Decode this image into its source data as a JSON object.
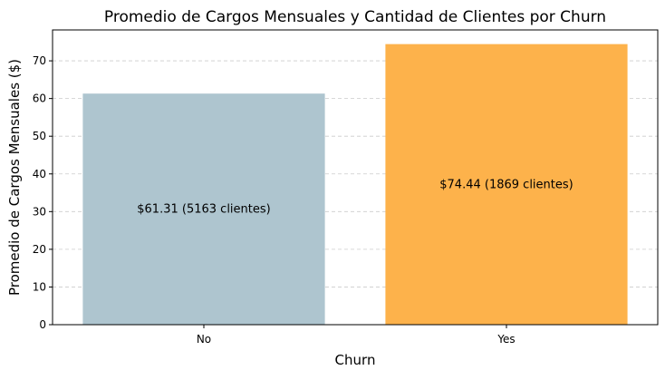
{
  "chart_data": {
    "type": "bar",
    "title": "Promedio de Cargos Mensuales y Cantidad de Clientes por Churn",
    "xlabel": "Churn",
    "ylabel": "Promedio de Cargos Mensuales ($)",
    "categories": [
      "No",
      "Yes"
    ],
    "values": [
      61.31,
      74.44
    ],
    "bar_labels": [
      "$61.31 (5163 clientes)",
      "$74.44 (1869 clientes)"
    ],
    "bar_colors": [
      "#aec5cf",
      "#fdb24b"
    ],
    "ylim": [
      0,
      78.2
    ],
    "yticks": [
      0,
      10,
      20,
      30,
      40,
      50,
      60,
      70
    ],
    "grid": "y-dashed",
    "legend": "none"
  }
}
